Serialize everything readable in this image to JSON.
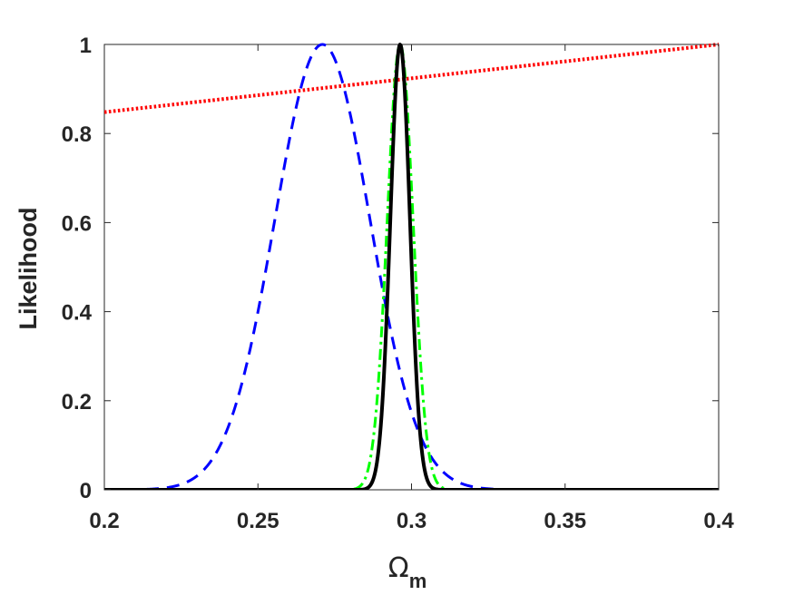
{
  "chart_data": {
    "type": "line",
    "title": "",
    "xlabel": {
      "main": "Ω",
      "sub": "m"
    },
    "ylabel": "Likelihood",
    "xlim": [
      0.2,
      0.4
    ],
    "ylim": [
      0,
      1
    ],
    "xticks": [
      0.2,
      0.25,
      0.3,
      0.35,
      0.4
    ],
    "xtick_labels": [
      "0.2",
      "0.25",
      "0.3",
      "0.35",
      "0.4"
    ],
    "yticks": [
      0,
      0.2,
      0.4,
      0.6,
      0.8,
      1
    ],
    "ytick_labels": [
      "0",
      "0.2",
      "0.4",
      "0.6",
      "0.8",
      "1"
    ],
    "grid": false,
    "box": true,
    "series": [
      {
        "color": "#0000ff",
        "style": "dashed",
        "kind": "gaussian",
        "mean": 0.271,
        "sigma": 0.0155,
        "peak": 1.0
      },
      {
        "color": "#ff0000",
        "style": "dotted",
        "kind": "linear",
        "points": [
          [
            0.2,
            0.848
          ],
          [
            0.4,
            1.0
          ]
        ]
      },
      {
        "color": "#00ff00",
        "style": "dashdot",
        "kind": "gaussian",
        "mean": 0.2963,
        "sigma": 0.0042,
        "peak": 1.0
      },
      {
        "color": "#000000",
        "style": "solid",
        "kind": "gaussian",
        "mean": 0.2963,
        "sigma": 0.0032,
        "peak": 1.0
      }
    ]
  }
}
